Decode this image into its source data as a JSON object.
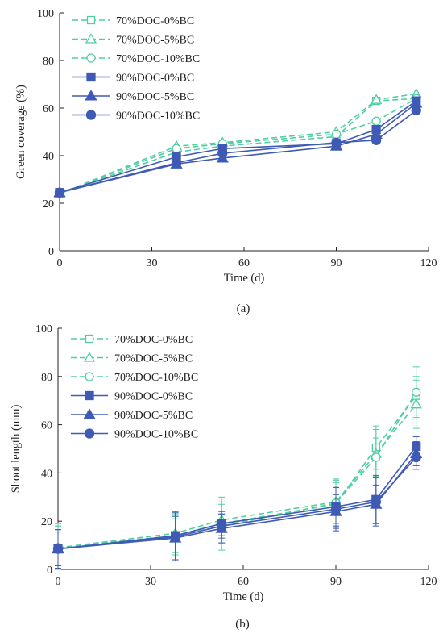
{
  "colors": {
    "doc70": "#4ECFA2",
    "doc90": "#3F5AB5",
    "axis": "#222222"
  },
  "chart_data": [
    {
      "type": "line",
      "panel_label": "(a)",
      "xlabel": "Time (d)",
      "ylabel": "Green coverage (%)",
      "xlim": [
        0,
        120
      ],
      "ylim": [
        0,
        100
      ],
      "xticks": [
        0,
        30,
        60,
        90,
        120
      ],
      "yticks": [
        0,
        20,
        40,
        60,
        80,
        100
      ],
      "grid": false,
      "legend": "top-left",
      "x": [
        0,
        38,
        53,
        90,
        103,
        116
      ],
      "series": [
        {
          "name": "70%DOC-0%BC",
          "marker": "square",
          "style": "dashed",
          "values": [
            24,
            41.5,
            44,
            48,
            63,
            64
          ]
        },
        {
          "name": "70%DOC-5%BC",
          "marker": "triangle",
          "style": "dashed",
          "values": [
            24,
            44,
            45.5,
            50,
            63.5,
            66
          ]
        },
        {
          "name": "70%DOC-10%BC",
          "marker": "circle",
          "style": "dashed",
          "values": [
            24,
            43,
            45,
            49,
            54.5,
            64
          ]
        },
        {
          "name": "90%DOC-0%BC",
          "marker": "square",
          "style": "solid",
          "values": [
            24.5,
            39.5,
            43,
            45,
            51,
            63
          ]
        },
        {
          "name": "90%DOC-5%BC",
          "marker": "triangle",
          "style": "solid",
          "values": [
            24.5,
            36.5,
            39,
            44,
            49,
            62
          ]
        },
        {
          "name": "90%DOC-10%BC",
          "marker": "circle",
          "style": "solid",
          "values": [
            24.5,
            37,
            41,
            45.5,
            46.5,
            59
          ]
        }
      ]
    },
    {
      "type": "line",
      "panel_label": "(b)",
      "xlabel": "Time (d)",
      "ylabel": "Shoot length (mm)",
      "xlim": [
        0,
        120
      ],
      "ylim": [
        0,
        100
      ],
      "xticks": [
        0,
        30,
        60,
        90,
        120
      ],
      "yticks": [
        0,
        20,
        40,
        60,
        80,
        100
      ],
      "grid": false,
      "legend": "top-left",
      "x": [
        0,
        38,
        53,
        90,
        103,
        116
      ],
      "series": [
        {
          "name": "70%DOC-0%BC",
          "marker": "square",
          "style": "dashed",
          "values": [
            9,
            14,
            19,
            27,
            50.5,
            72
          ],
          "errors": [
            9,
            8,
            8,
            9,
            9,
            8
          ]
        },
        {
          "name": "70%DOC-5%BC",
          "marker": "triangle",
          "style": "dashed",
          "values": [
            9,
            15,
            20.5,
            28,
            48,
            68.5
          ],
          "errors": [
            9,
            8,
            9.5,
            9,
            10,
            10
          ]
        },
        {
          "name": "70%DOC-10%BC",
          "marker": "circle",
          "style": "dashed",
          "values": [
            9,
            14,
            18,
            27.5,
            46.5,
            73.5
          ],
          "errors": [
            10,
            7,
            10,
            10,
            8,
            10.5
          ]
        },
        {
          "name": "90%DOC-0%BC",
          "marker": "square",
          "style": "solid",
          "values": [
            8.5,
            14,
            19,
            26,
            29,
            51
          ],
          "errors": [
            8,
            10,
            5,
            8,
            10,
            4
          ]
        },
        {
          "name": "90%DOC-5%BC",
          "marker": "triangle",
          "style": "solid",
          "values": [
            8.5,
            13,
            17,
            24,
            27,
            48
          ],
          "errors": [
            7,
            9,
            6,
            7,
            8,
            5
          ]
        },
        {
          "name": "90%DOC-10%BC",
          "marker": "circle",
          "style": "solid",
          "values": [
            8.5,
            13.5,
            18,
            25,
            28,
            46.5
          ],
          "errors": [
            8,
            10,
            5,
            9,
            10,
            5
          ]
        }
      ]
    }
  ]
}
